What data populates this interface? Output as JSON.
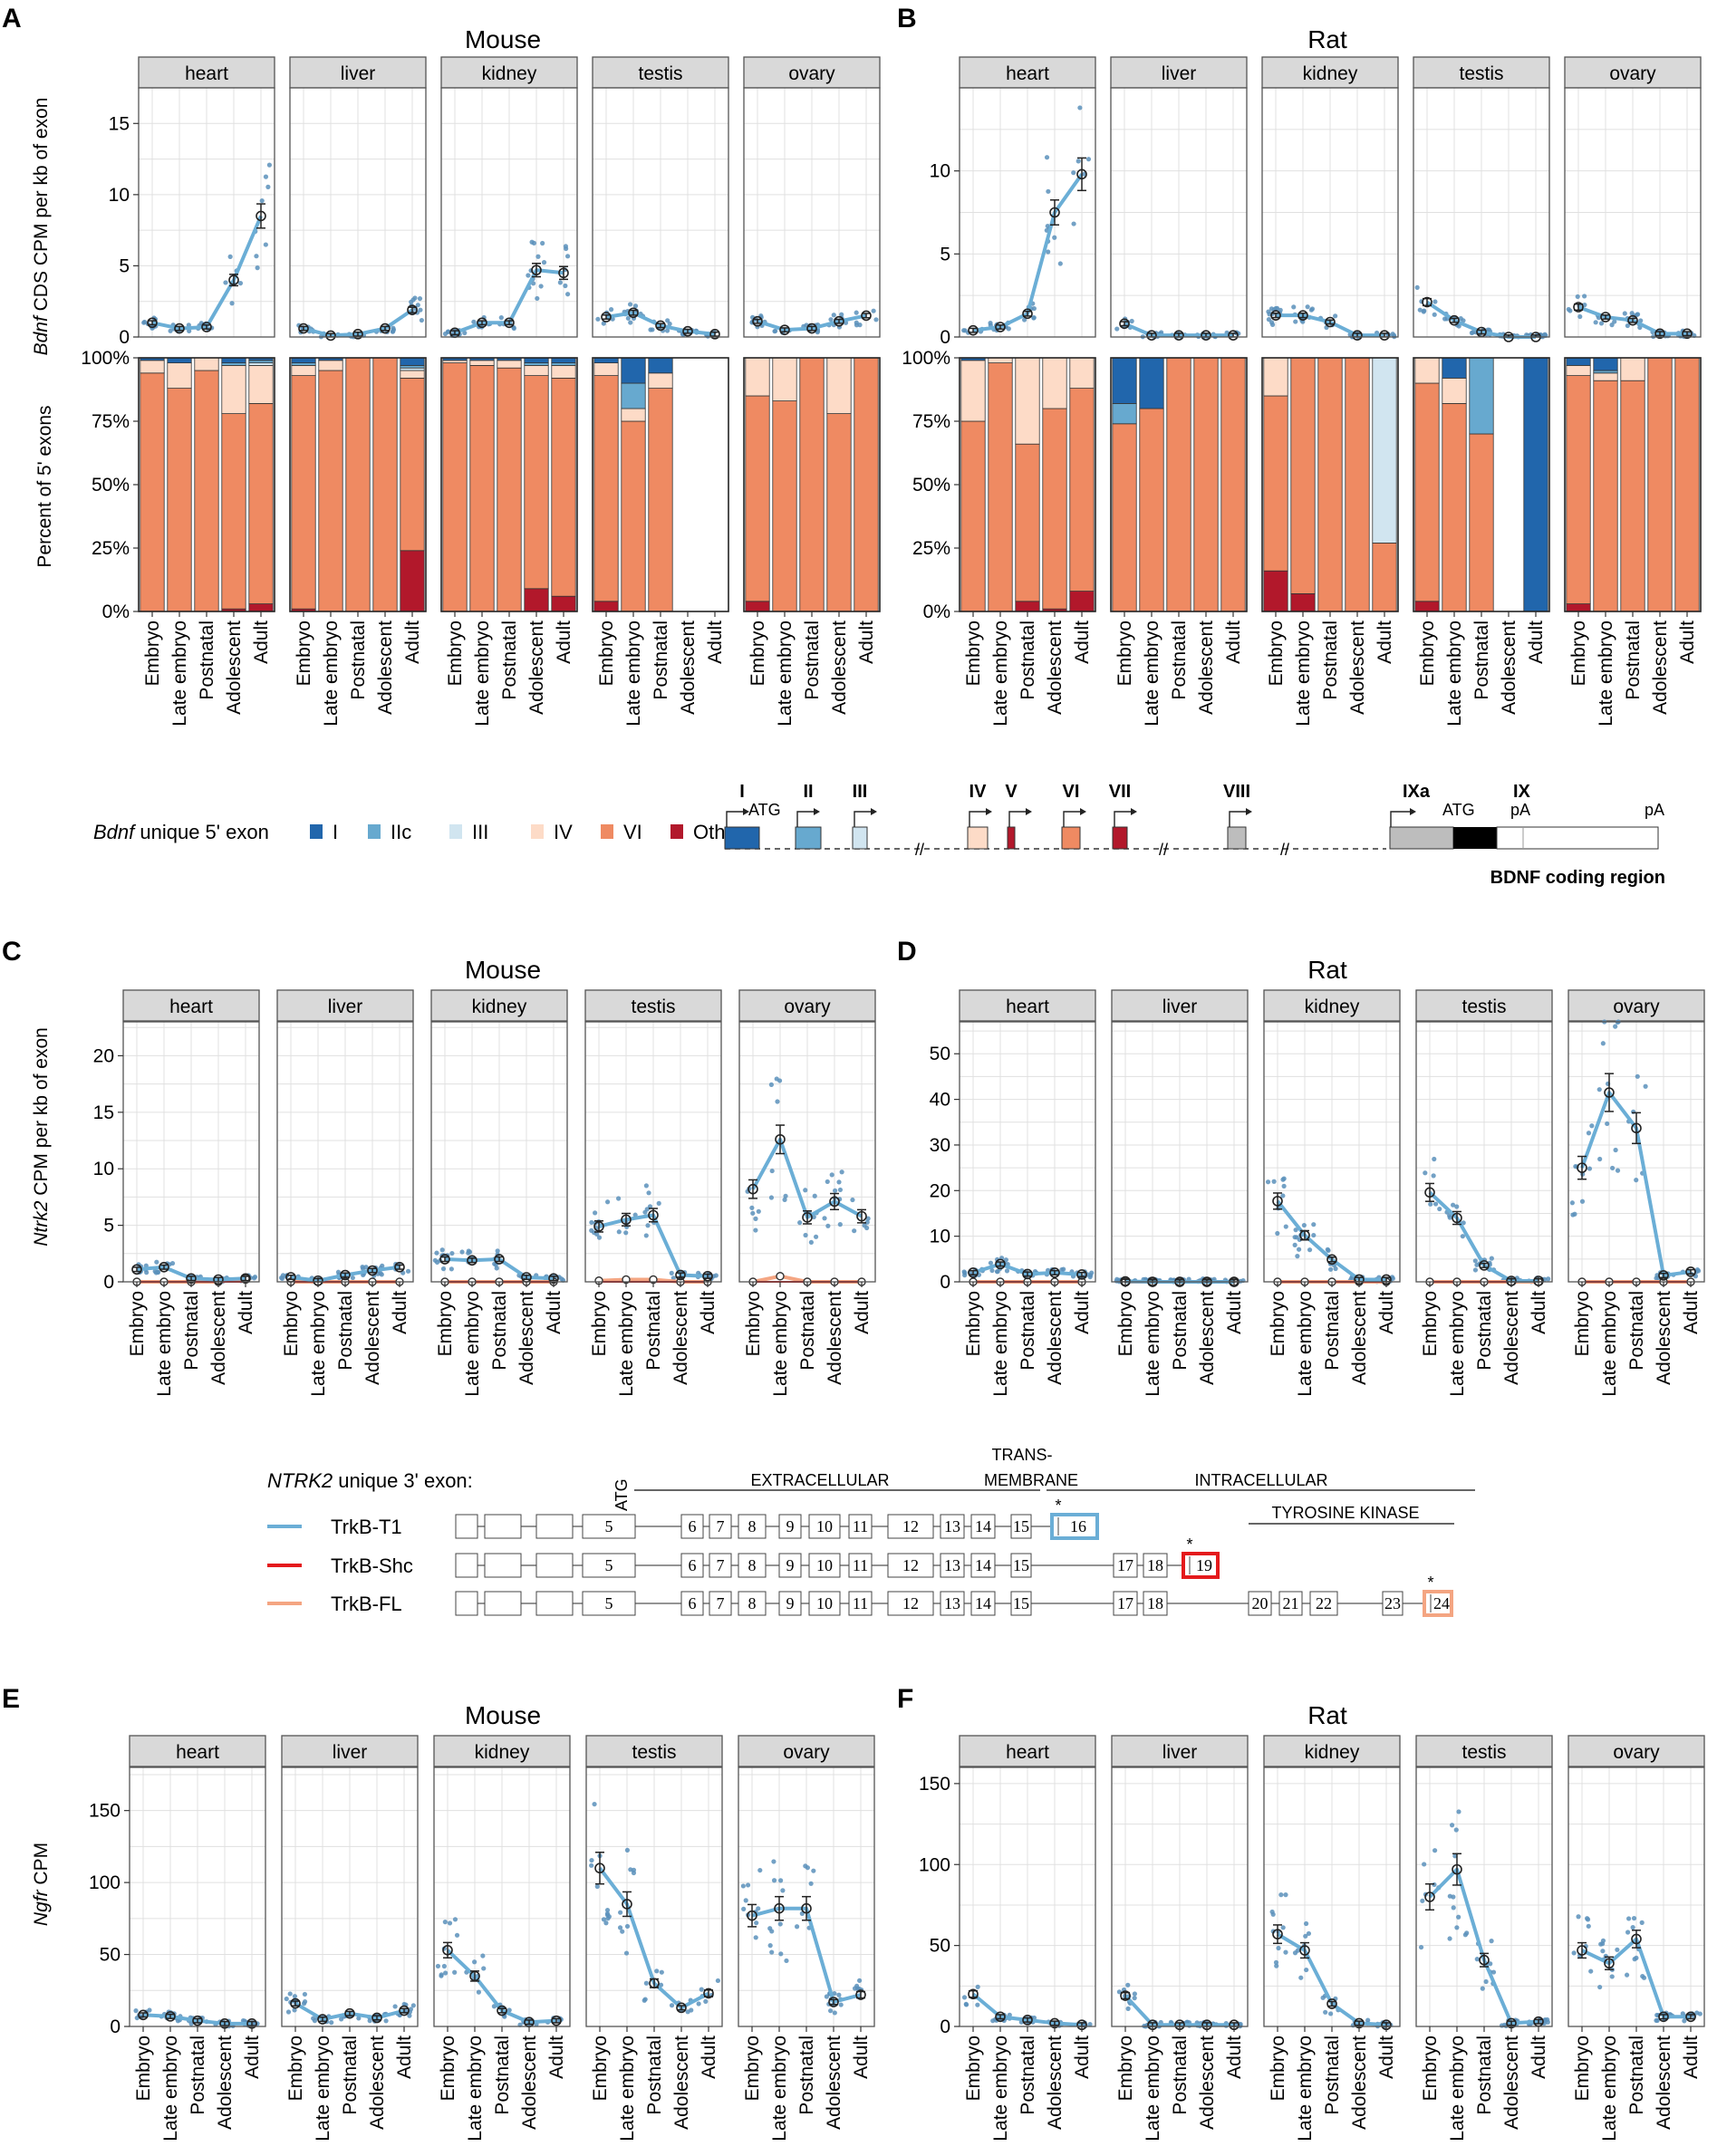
{
  "colors": {
    "line": "#6BAED6",
    "point": "#5B91BB",
    "grid": "#E0E0E0",
    "strip": "#D9D9D9",
    "exon_I": "#2166AC",
    "exon_IIc": "#67A9CF",
    "exon_III": "#D1E5F0",
    "exon_IV": "#FDDBC7",
    "exon_VI": "#EF8A62",
    "exon_Others": "#B2182B",
    "trk_T1": "#6BAED6",
    "trk_Shc": "#E41A1C",
    "trk_FL": "#F4A582",
    "exon_IXa": "#BDBDBD"
  },
  "stages": [
    "Embryo",
    "Late embryo",
    "Postnatal",
    "Adolescent",
    "Adult"
  ],
  "tissues": [
    "heart",
    "liver",
    "kidney",
    "testis",
    "ovary"
  ],
  "species": {
    "mouse": "Mouse",
    "rat": "Rat"
  },
  "panel_labels": {
    "A": "A",
    "B": "B",
    "C": "C",
    "D": "D",
    "E": "E",
    "F": "F"
  },
  "axes": {
    "bdnf_y_italic": "Bdnf",
    "bdnf_y_rest": " CDS CPM per kb of exon",
    "percent_y": "Percent of 5' exons",
    "ntrk2_y_italic": "Ntrk2",
    "ntrk2_y_rest": " CPM per kb of exon",
    "ngfr_y_italic": "Ngfr",
    "ngfr_y_rest": " CPM"
  },
  "bdnf_legend": {
    "title_italic": "Bdnf",
    "title_rest": " unique 5' exon",
    "items": [
      {
        "label": "I",
        "color": "#2166AC"
      },
      {
        "label": "IIc",
        "color": "#67A9CF"
      },
      {
        "label": "III",
        "color": "#D1E5F0"
      },
      {
        "label": "IV",
        "color": "#FDDBC7"
      },
      {
        "label": "VI",
        "color": "#EF8A62"
      },
      {
        "label": "Others",
        "color": "#B2182B"
      }
    ]
  },
  "bdnf_gene": {
    "exons": [
      "I",
      "II",
      "III",
      "IV",
      "V",
      "VI",
      "VII",
      "VIII",
      "IXa",
      "IX"
    ],
    "atg": "ATG",
    "pa": "pA",
    "coding_label": "BDNF coding region"
  },
  "ntrk2_legend": {
    "title_italic": "NTRK2",
    "title_rest": " unique 3' exon:",
    "isoforms": [
      "TrkB-T1",
      "TrkB-Shc",
      "TrkB-FL"
    ],
    "regions": [
      "EXTRACELLULAR",
      "TRANS-",
      "MEMBRANE",
      "INTRACELLULAR",
      "TYROSINE KINASE"
    ],
    "atg": "ATG",
    "star": "*",
    "common_exons": [
      "5",
      "6",
      "7",
      "8",
      "9",
      "10",
      "11",
      "12",
      "13",
      "14",
      "15"
    ],
    "t1_exon": "16",
    "shc_exons": [
      "17",
      "18",
      "19"
    ],
    "fl_exons": [
      "17",
      "18",
      "20",
      "21",
      "22",
      "23",
      "24"
    ]
  },
  "chart_data": [
    {
      "id": "A_expr",
      "type": "line",
      "species": "Mouse",
      "ylim": [
        0,
        17.5
      ],
      "yticks": [
        0,
        5,
        10,
        15
      ],
      "ylabel": "Bdnf CDS CPM per kb of exon",
      "categories": [
        "Embryo",
        "Late embryo",
        "Postnatal",
        "Adolescent",
        "Adult"
      ],
      "series": [
        {
          "name": "heart",
          "values": [
            1.0,
            0.6,
            0.7,
            4.0,
            8.5
          ]
        },
        {
          "name": "liver",
          "values": [
            0.6,
            0.1,
            0.2,
            0.6,
            1.9
          ]
        },
        {
          "name": "kidney",
          "values": [
            0.3,
            1.0,
            1.0,
            4.7,
            4.5
          ]
        },
        {
          "name": "testis",
          "values": [
            1.4,
            1.7,
            0.8,
            0.4,
            0.2
          ]
        },
        {
          "name": "ovary",
          "values": [
            1.1,
            0.5,
            0.6,
            1.1,
            1.5
          ]
        }
      ]
    },
    {
      "id": "A_pct",
      "type": "bar",
      "stacked": true,
      "species": "Mouse",
      "ylim": [
        0,
        100
      ],
      "yticks": [
        "0%",
        "25%",
        "50%",
        "75%",
        "100%"
      ],
      "ylabel": "Percent of 5' exons",
      "stack_order": [
        "Others",
        "VI",
        "IV",
        "III",
        "IIc",
        "I"
      ],
      "series": [
        {
          "name": "heart",
          "values": [
            [
              0,
              94,
              5,
              0,
              0,
              1
            ],
            [
              0,
              88,
              10,
              0,
              0,
              2
            ],
            [
              0,
              95,
              5,
              0,
              0,
              0
            ],
            [
              1,
              77,
              19,
              0,
              1,
              2
            ],
            [
              3,
              79,
              15,
              1,
              1,
              1
            ]
          ]
        },
        {
          "name": "liver",
          "values": [
            [
              1,
              92,
              4,
              0,
              1,
              2
            ],
            [
              0,
              95,
              4,
              0,
              0,
              1
            ],
            [
              0,
              100,
              0,
              0,
              0,
              0
            ],
            [
              0,
              100,
              0,
              0,
              0,
              0
            ],
            [
              24,
              68,
              3,
              1,
              1,
              3
            ]
          ]
        },
        {
          "name": "kidney",
          "values": [
            [
              0,
              98,
              1,
              0,
              0,
              1
            ],
            [
              0,
              97,
              2,
              0,
              0,
              1
            ],
            [
              0,
              96,
              3,
              0,
              0,
              1
            ],
            [
              9,
              84,
              4,
              0,
              1,
              2
            ],
            [
              6,
              86,
              5,
              0,
              1,
              2
            ]
          ]
        },
        {
          "name": "testis",
          "values": [
            [
              4,
              89,
              5,
              0,
              0,
              2
            ],
            [
              0,
              75,
              5,
              0,
              10,
              10
            ],
            [
              0,
              88,
              6,
              0,
              0,
              6
            ],
            [
              0,
              0,
              0,
              0,
              0,
              0
            ],
            [
              0,
              0,
              0,
              0,
              0,
              0
            ]
          ]
        },
        {
          "name": "ovary",
          "values": [
            [
              4,
              81,
              15,
              0,
              0,
              0
            ],
            [
              0,
              83,
              17,
              0,
              0,
              0
            ],
            [
              0,
              100,
              0,
              0,
              0,
              0
            ],
            [
              0,
              78,
              22,
              0,
              0,
              0
            ],
            [
              0,
              100,
              0,
              0,
              0,
              0
            ]
          ]
        }
      ]
    },
    {
      "id": "B_expr",
      "type": "line",
      "species": "Rat",
      "ylim": [
        0,
        15
      ],
      "yticks": [
        0,
        5,
        10
      ],
      "series": [
        {
          "name": "heart",
          "values": [
            0.4,
            0.6,
            1.4,
            7.5,
            9.8
          ]
        },
        {
          "name": "liver",
          "values": [
            0.8,
            0.1,
            0.1,
            0.1,
            0.1
          ]
        },
        {
          "name": "kidney",
          "values": [
            1.3,
            1.3,
            0.9,
            0.1,
            0.1
          ]
        },
        {
          "name": "testis",
          "values": [
            2.1,
            1.0,
            0.3,
            0.0,
            0.0
          ]
        },
        {
          "name": "ovary",
          "values": [
            1.8,
            1.2,
            1.0,
            0.2,
            0.2
          ]
        }
      ]
    },
    {
      "id": "B_pct",
      "type": "bar",
      "stacked": true,
      "species": "Rat",
      "ylim": [
        0,
        100
      ],
      "yticks": [
        "0%",
        "25%",
        "50%",
        "75%",
        "100%"
      ],
      "stack_order": [
        "Others",
        "VI",
        "IV",
        "III",
        "IIc",
        "I"
      ],
      "series": [
        {
          "name": "heart",
          "values": [
            [
              0,
              75,
              24,
              0,
              0,
              1
            ],
            [
              0,
              98,
              2,
              0,
              0,
              0
            ],
            [
              4,
              62,
              34,
              0,
              0,
              0
            ],
            [
              1,
              79,
              20,
              0,
              0,
              0
            ],
            [
              8,
              80,
              12,
              0,
              0,
              0
            ]
          ]
        },
        {
          "name": "liver",
          "values": [
            [
              0,
              74,
              0,
              0,
              8,
              18
            ],
            [
              0,
              80,
              0,
              0,
              0,
              20
            ],
            [
              0,
              100,
              0,
              0,
              0,
              0
            ],
            [
              0,
              100,
              0,
              0,
              0,
              0
            ],
            [
              0,
              100,
              0,
              0,
              0,
              0
            ]
          ]
        },
        {
          "name": "kidney",
          "values": [
            [
              16,
              69,
              15,
              0,
              0,
              0
            ],
            [
              7,
              93,
              0,
              0,
              0,
              0
            ],
            [
              0,
              100,
              0,
              0,
              0,
              0
            ],
            [
              0,
              100,
              0,
              0,
              0,
              0
            ],
            [
              0,
              27,
              0,
              73,
              0,
              0
            ]
          ]
        },
        {
          "name": "testis",
          "values": [
            [
              4,
              86,
              10,
              0,
              0,
              0
            ],
            [
              0,
              82,
              10,
              0,
              0,
              8
            ],
            [
              0,
              70,
              0,
              0,
              30,
              0
            ],
            [
              0,
              0,
              0,
              0,
              0,
              0
            ],
            [
              0,
              0,
              0,
              0,
              0,
              100
            ]
          ]
        },
        {
          "name": "ovary",
          "values": [
            [
              3,
              90,
              4,
              0,
              0,
              3
            ],
            [
              0,
              91,
              3,
              0,
              1,
              5
            ],
            [
              0,
              91,
              9,
              0,
              0,
              0
            ],
            [
              0,
              100,
              0,
              0,
              0,
              0
            ],
            [
              0,
              100,
              0,
              0,
              0,
              0
            ]
          ]
        }
      ]
    },
    {
      "id": "C",
      "type": "line",
      "species": "Mouse",
      "ylim": [
        0,
        23
      ],
      "yticks": [
        0,
        5,
        10,
        15,
        20
      ],
      "ylabel": "Ntrk2 CPM per kb of exon",
      "series": [
        {
          "name": "heart",
          "values": [
            1.1,
            1.3,
            0.3,
            0.2,
            0.3
          ],
          "shc": [
            0,
            0,
            0,
            0,
            0
          ],
          "fl": [
            0,
            0,
            0,
            0,
            0.3
          ]
        },
        {
          "name": "liver",
          "values": [
            0.4,
            0.1,
            0.6,
            1.0,
            1.3
          ],
          "shc": [
            0,
            0,
            0,
            0,
            0
          ],
          "fl": [
            0,
            0,
            0,
            0,
            0
          ]
        },
        {
          "name": "kidney",
          "values": [
            2.0,
            1.9,
            2.0,
            0.4,
            0.3
          ],
          "shc": [
            0,
            0,
            0,
            0,
            0
          ],
          "fl": [
            0,
            0,
            0,
            0,
            0
          ]
        },
        {
          "name": "testis",
          "values": [
            4.9,
            5.5,
            5.9,
            0.6,
            0.5
          ],
          "shc": [
            0,
            0,
            0,
            0,
            0
          ],
          "fl": [
            0.1,
            0.2,
            0.2,
            0,
            0
          ]
        },
        {
          "name": "ovary",
          "values": [
            8.2,
            12.6,
            5.7,
            7.1,
            5.8
          ],
          "shc": [
            0,
            0,
            0,
            0,
            0
          ],
          "fl": [
            0,
            0.5,
            0,
            0,
            0
          ]
        }
      ]
    },
    {
      "id": "D",
      "type": "line",
      "species": "Rat",
      "ylim": [
        0,
        57
      ],
      "yticks": [
        0,
        10,
        20,
        30,
        40,
        50
      ],
      "series": [
        {
          "name": "heart",
          "values": [
            2.0,
            3.9,
            1.7,
            2.0,
            1.6
          ],
          "shc": [
            0,
            0,
            0,
            0,
            0
          ],
          "fl": [
            0,
            0,
            0,
            0,
            0
          ]
        },
        {
          "name": "liver",
          "values": [
            0.1,
            0.0,
            0.0,
            0.0,
            0.0
          ],
          "shc": [
            0,
            0,
            0,
            0,
            0
          ],
          "fl": [
            0,
            0,
            0,
            0,
            0
          ]
        },
        {
          "name": "kidney",
          "values": [
            17.7,
            10.2,
            4.9,
            0.5,
            0.5
          ],
          "shc": [
            0,
            0,
            0,
            0,
            0
          ],
          "fl": [
            0,
            0,
            0,
            0,
            0
          ]
        },
        {
          "name": "testis",
          "values": [
            19.6,
            14.0,
            3.6,
            0.2,
            0.2
          ],
          "shc": [
            0,
            0,
            0,
            0,
            0
          ],
          "fl": [
            0,
            0,
            0,
            0,
            0
          ]
        },
        {
          "name": "ovary",
          "values": [
            25.0,
            41.5,
            33.7,
            1.4,
            2.2
          ],
          "shc": [
            0,
            0,
            0,
            0,
            0
          ],
          "fl": [
            0,
            0,
            0,
            0,
            0
          ]
        }
      ]
    },
    {
      "id": "E",
      "type": "line",
      "species": "Mouse",
      "ylim": [
        0,
        180
      ],
      "yticks": [
        0,
        50,
        100,
        150
      ],
      "ylabel": "Ngfr CPM",
      "series": [
        {
          "name": "heart",
          "values": [
            8,
            7,
            4,
            2,
            2
          ]
        },
        {
          "name": "liver",
          "values": [
            16,
            5,
            9,
            6,
            11
          ]
        },
        {
          "name": "kidney",
          "values": [
            53,
            35,
            11,
            3,
            4
          ]
        },
        {
          "name": "testis",
          "values": [
            110,
            85,
            30,
            13,
            23
          ]
        },
        {
          "name": "ovary",
          "values": [
            77,
            82,
            82,
            17,
            22
          ]
        }
      ]
    },
    {
      "id": "F",
      "type": "line",
      "species": "Rat",
      "ylim": [
        0,
        160
      ],
      "yticks": [
        0,
        50,
        100,
        150
      ],
      "series": [
        {
          "name": "heart",
          "values": [
            20,
            6,
            4,
            2,
            1
          ]
        },
        {
          "name": "liver",
          "values": [
            19,
            1,
            1,
            1,
            1
          ]
        },
        {
          "name": "kidney",
          "values": [
            57,
            47,
            14,
            2,
            1
          ]
        },
        {
          "name": "testis",
          "values": [
            80,
            97,
            41,
            2,
            3
          ]
        },
        {
          "name": "ovary",
          "values": [
            47,
            39,
            54,
            6,
            6
          ]
        }
      ]
    }
  ]
}
